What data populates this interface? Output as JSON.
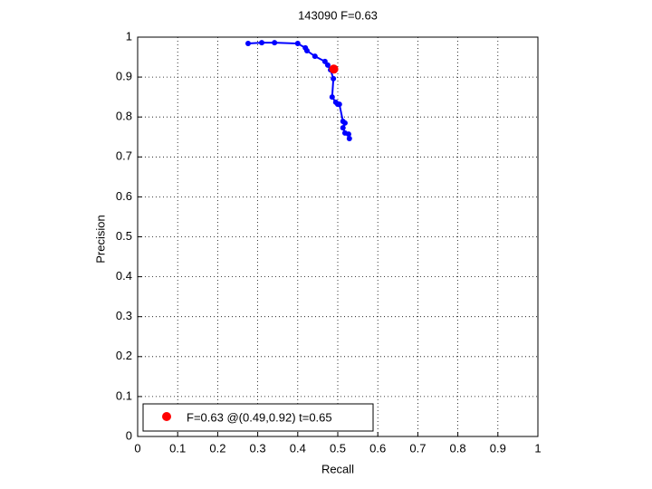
{
  "chart_data": {
    "type": "line",
    "title": "143090 F=0.63",
    "x_label": "Recall",
    "y_label": "Precision",
    "xlim": [
      0,
      1
    ],
    "ylim": [
      0,
      1
    ],
    "xticks": [
      0,
      0.1,
      0.2,
      0.3,
      0.4,
      0.5,
      0.6,
      0.7,
      0.8,
      0.9,
      1
    ],
    "yticks": [
      0,
      0.1,
      0.2,
      0.3,
      0.4,
      0.5,
      0.6,
      0.7,
      0.8,
      0.9,
      1
    ],
    "grid": true,
    "legend": "lower left",
    "series": [
      {
        "color": "#0000ff",
        "marker": true,
        "linestyle": "solid",
        "x": [
          0.276,
          0.31,
          0.342,
          0.4,
          0.419,
          0.423,
          0.443,
          0.468,
          0.475,
          0.482,
          0.489,
          0.486,
          0.495,
          0.5,
          0.504,
          0.513,
          0.518,
          0.513,
          0.518,
          0.527,
          0.529
        ],
        "values": [
          0.984,
          0.986,
          0.986,
          0.984,
          0.973,
          0.966,
          0.952,
          0.939,
          0.93,
          0.918,
          0.896,
          0.85,
          0.837,
          0.832,
          0.832,
          0.789,
          0.785,
          0.773,
          0.76,
          0.757,
          0.746
        ]
      },
      {
        "name": "F=0.63 @(0.49,0.92) t=0.65",
        "color": "#ff0000",
        "marker": true,
        "linestyle": "none",
        "x": [
          0.49
        ],
        "values": [
          0.92
        ]
      }
    ]
  }
}
